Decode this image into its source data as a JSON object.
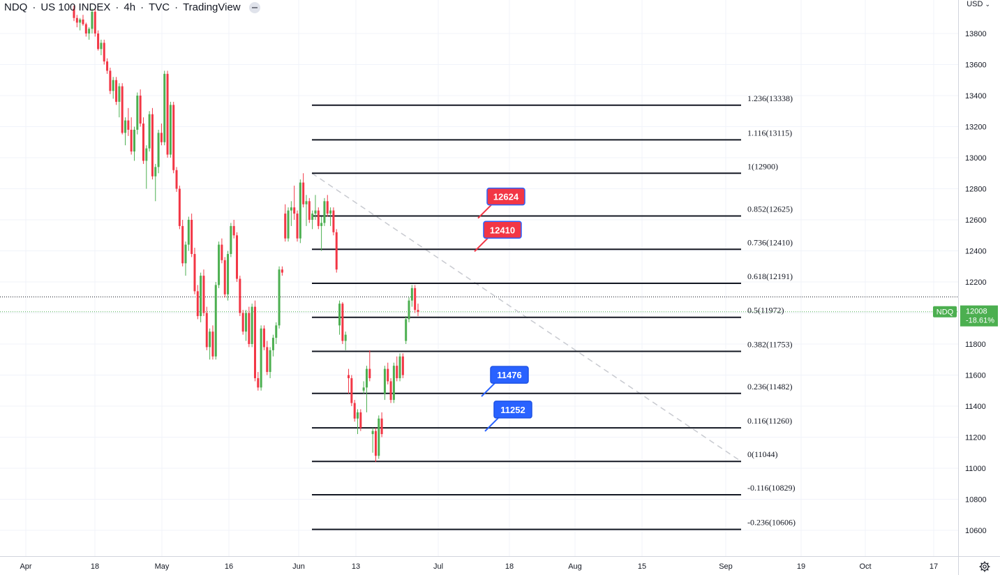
{
  "header": {
    "symbol": "NDQ",
    "name": "US 100 INDEX",
    "interval": "4h",
    "source": "TVC",
    "platform": "TradingView"
  },
  "price_scale": {
    "currency": "USD"
  },
  "colors": {
    "up": "#4caf50",
    "down": "#f23645",
    "price_badge": "#4caf50",
    "callout_red": "#f23645",
    "callout_blue": "#2962ff",
    "fib_line": "#131722",
    "trend_dashed": "#c8cad0"
  },
  "icons": {
    "settings": "gear-icon",
    "currency_menu": "chevron-down-icon",
    "header_menu": "minus-icon"
  },
  "chart_data": {
    "type": "candlestick",
    "ylim": [
      10480,
      13980
    ],
    "y_ticks": [
      10600,
      10800,
      11000,
      11200,
      11400,
      11600,
      11800,
      12000,
      12200,
      12400,
      12600,
      12800,
      13000,
      13200,
      13400,
      13600,
      13800
    ],
    "x_ticks": [
      "Apr",
      "18",
      "May",
      "16",
      "Jun",
      "13",
      "Jul",
      "18",
      "Aug",
      "15",
      "Sep",
      "19",
      "Oct",
      "17"
    ],
    "grid": true,
    "current_price": {
      "symbol": "NDQ",
      "value": "12008",
      "change": "-18.61%"
    },
    "fib_levels": [
      {
        "ratio": 1.236,
        "value": 13338,
        "label": "1.236(13338)"
      },
      {
        "ratio": 1.116,
        "value": 13115,
        "label": "1.116(13115)"
      },
      {
        "ratio": 1,
        "value": 12900,
        "label": "1(12900)"
      },
      {
        "ratio": 0.852,
        "value": 12625,
        "label": "0.852(12625)"
      },
      {
        "ratio": 0.736,
        "value": 12410,
        "label": "0.736(12410)"
      },
      {
        "ratio": 0.618,
        "value": 12191,
        "label": "0.618(12191)"
      },
      {
        "ratio": 0.5,
        "value": 11972,
        "label": "0.5(11972)"
      },
      {
        "ratio": 0.382,
        "value": 11753,
        "label": "0.382(11753)"
      },
      {
        "ratio": 0.236,
        "value": 11482,
        "label": "0.236(11482)"
      },
      {
        "ratio": 0.116,
        "value": 11260,
        "label": "0.116(11260)"
      },
      {
        "ratio": 0,
        "value": 11044,
        "label": "0(11044)"
      },
      {
        "ratio": -0.116,
        "value": 10829,
        "label": "-0.116(10829)"
      },
      {
        "ratio": -0.236,
        "value": 10606,
        "label": "-0.236(10606)"
      }
    ],
    "callouts": [
      {
        "text": "12624",
        "value": 12624,
        "color": "red"
      },
      {
        "text": "12410",
        "value": 12410,
        "color": "red"
      },
      {
        "text": "11476",
        "value": 11476,
        "color": "blue"
      },
      {
        "text": "11252",
        "value": 11252,
        "color": "blue"
      }
    ],
    "candles": [
      [
        13960,
        13980,
        13880,
        13900
      ],
      [
        13900,
        13920,
        13840,
        13870
      ],
      [
        13870,
        13900,
        13820,
        13890
      ],
      [
        13890,
        13920,
        13850,
        13860
      ],
      [
        13860,
        13870,
        13780,
        13800
      ],
      [
        13800,
        13840,
        13760,
        13830
      ],
      [
        13830,
        13960,
        13800,
        13940
      ],
      [
        13940,
        13960,
        13780,
        13800
      ],
      [
        13800,
        13820,
        13690,
        13700
      ],
      [
        13700,
        13760,
        13660,
        13740
      ],
      [
        13740,
        13760,
        13600,
        13620
      ],
      [
        13620,
        13640,
        13540,
        13560
      ],
      [
        13560,
        13580,
        13410,
        13430
      ],
      [
        13430,
        13520,
        13380,
        13500
      ],
      [
        13500,
        13520,
        13340,
        13360
      ],
      [
        13360,
        13480,
        13260,
        13460
      ],
      [
        13460,
        13480,
        13150,
        13160
      ],
      [
        13160,
        13260,
        13080,
        13240
      ],
      [
        13240,
        13320,
        13140,
        13180
      ],
      [
        13180,
        13260,
        13020,
        13040
      ],
      [
        13040,
        13200,
        12980,
        13180
      ],
      [
        13180,
        13420,
        13150,
        13400
      ],
      [
        13400,
        13440,
        13200,
        13220
      ],
      [
        13220,
        13260,
        12960,
        12980
      ],
      [
        12980,
        13080,
        12800,
        13060
      ],
      [
        13060,
        13300,
        13040,
        13280
      ],
      [
        13280,
        13320,
        12860,
        12880
      ],
      [
        12880,
        12960,
        12720,
        12940
      ],
      [
        12940,
        13180,
        12900,
        13160
      ],
      [
        13160,
        13220,
        13080,
        13100
      ],
      [
        13100,
        13560,
        13080,
        13540
      ],
      [
        13540,
        13560,
        13000,
        13020
      ],
      [
        13020,
        13360,
        13000,
        13340
      ],
      [
        13340,
        13360,
        12900,
        12920
      ],
      [
        12920,
        12940,
        12780,
        12800
      ],
      [
        12800,
        12820,
        12540,
        12560
      ],
      [
        12560,
        12600,
        12300,
        12320
      ],
      [
        12320,
        12460,
        12240,
        12440
      ],
      [
        12440,
        12620,
        12400,
        12600
      ],
      [
        12600,
        12640,
        12360,
        12380
      ],
      [
        12380,
        12420,
        12120,
        12140
      ],
      [
        12140,
        12180,
        11960,
        11980
      ],
      [
        11980,
        12260,
        11940,
        12240
      ],
      [
        12240,
        12280,
        11980,
        12000
      ],
      [
        12000,
        12040,
        11760,
        11780
      ],
      [
        11780,
        11900,
        11700,
        11880
      ],
      [
        11880,
        11920,
        11700,
        11720
      ],
      [
        11720,
        12200,
        11700,
        12180
      ],
      [
        12180,
        12460,
        12160,
        12440
      ],
      [
        12440,
        12480,
        12320,
        12340
      ],
      [
        12340,
        12360,
        12100,
        12120
      ],
      [
        12120,
        12400,
        12080,
        12380
      ],
      [
        12380,
        12580,
        12360,
        12560
      ],
      [
        12560,
        12600,
        12480,
        12500
      ],
      [
        12500,
        12520,
        12200,
        12220
      ],
      [
        12220,
        12240,
        11980,
        12000
      ],
      [
        12000,
        12020,
        11860,
        11880
      ],
      [
        11880,
        12020,
        11820,
        12000
      ],
      [
        12000,
        12040,
        11780,
        11800
      ],
      [
        11800,
        12060,
        11780,
        12040
      ],
      [
        12040,
        12080,
        11560,
        11580
      ],
      [
        11580,
        11620,
        11500,
        11520
      ],
      [
        11520,
        11920,
        11500,
        11900
      ],
      [
        11900,
        11920,
        11760,
        11780
      ],
      [
        11780,
        11820,
        11600,
        11620
      ],
      [
        11620,
        11780,
        11580,
        11760
      ],
      [
        11760,
        11860,
        11720,
        11840
      ],
      [
        11840,
        11940,
        11800,
        11920
      ],
      [
        11920,
        12300,
        11900,
        12280
      ],
      [
        12280,
        12300,
        12240,
        12260
      ],
      [
        12640,
        12700,
        12460,
        12480
      ],
      [
        12480,
        12680,
        12460,
        12660
      ],
      [
        12660,
        12720,
        12560,
        12680
      ],
      [
        12680,
        12820,
        12600,
        12640
      ],
      [
        12640,
        12660,
        12460,
        12480
      ],
      [
        12480,
        12860,
        12450,
        12840
      ],
      [
        12840,
        12900,
        12680,
        12700
      ],
      [
        12700,
        12760,
        12560,
        12720
      ],
      [
        12720,
        12740,
        12580,
        12600
      ],
      [
        12600,
        12660,
        12540,
        12640
      ],
      [
        12640,
        12760,
        12600,
        12660
      ],
      [
        12660,
        12680,
        12540,
        12560
      ],
      [
        12560,
        12620,
        12400,
        12580
      ],
      [
        12580,
        12740,
        12560,
        12720
      ],
      [
        12720,
        12760,
        12620,
        12640
      ],
      [
        12640,
        12680,
        12560,
        12660
      ],
      [
        12660,
        12680,
        12500,
        12520
      ],
      [
        12520,
        12540,
        12260,
        12280
      ],
      [
        11920,
        12080,
        11860,
        12060
      ],
      [
        12060,
        12070,
        11800,
        11820
      ],
      [
        11820,
        11880,
        11760,
        11860
      ],
      [
        11600,
        11640,
        11480,
        11580
      ],
      [
        11580,
        11600,
        11400,
        11420
      ],
      [
        11420,
        11440,
        11300,
        11320
      ],
      [
        11320,
        11380,
        11220,
        11360
      ],
      [
        11360,
        11380,
        11240,
        11260
      ],
      [
        11500,
        11560,
        11480,
        11520
      ],
      [
        11520,
        11660,
        11360,
        11640
      ],
      [
        11640,
        11760,
        11560,
        11580
      ],
      [
        11220,
        11260,
        11100,
        11240
      ],
      [
        11240,
        11260,
        11040,
        11080
      ],
      [
        11080,
        11340,
        11060,
        11320
      ],
      [
        11320,
        11360,
        11200,
        11220
      ],
      [
        11480,
        11660,
        11440,
        11640
      ],
      [
        11640,
        11680,
        11540,
        11560
      ],
      [
        11560,
        11580,
        11420,
        11440
      ],
      [
        11440,
        11680,
        11420,
        11660
      ],
      [
        11660,
        11720,
        11560,
        11580
      ],
      [
        11580,
        11740,
        11560,
        11720
      ],
      [
        11720,
        11740,
        11580,
        11600
      ],
      [
        11820,
        11980,
        11800,
        11960
      ],
      [
        11960,
        12100,
        11940,
        12080
      ],
      [
        12080,
        12180,
        12040,
        12160
      ],
      [
        12160,
        12180,
        12000,
        12020
      ],
      [
        12020,
        12060,
        11980,
        12008
      ]
    ]
  }
}
